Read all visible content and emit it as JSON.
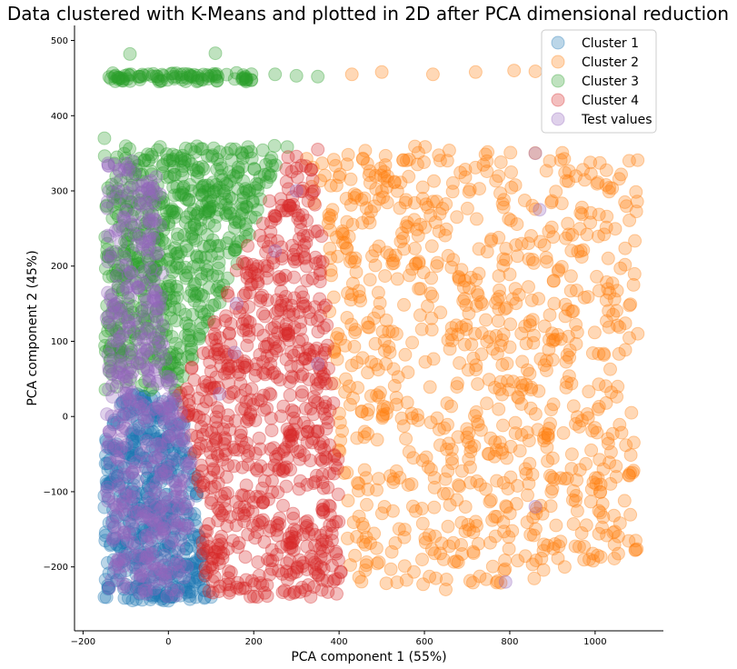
{
  "chart_data": {
    "type": "scatter",
    "title": "Data clustered with K-Means and plotted in 2D after PCA dimensional reduction",
    "xlabel": "PCA component 1 (55%)",
    "ylabel": "PCA component 2 (45%)",
    "xlim": [
      -220,
      1160
    ],
    "ylim": [
      -285,
      520
    ],
    "xticks": [
      -200,
      0,
      200,
      400,
      600,
      800,
      1000
    ],
    "yticks": [
      -200,
      -100,
      0,
      100,
      200,
      300,
      400,
      500
    ],
    "grid": false,
    "legend_position": "top-right",
    "marker_alpha": 0.3,
    "series": [
      {
        "name": "Cluster 1",
        "color": "#1f77b4",
        "regions": [
          {
            "polygon": [
              [
                -150,
                30
              ],
              [
                -150,
                -245
              ],
              [
                90,
                -245
              ],
              [
                60,
                -60
              ],
              [
                20,
                30
              ]
            ],
            "count": 520
          }
        ],
        "points": [
          [
            -150,
            -240
          ],
          [
            0,
            -245
          ],
          [
            100,
            -240
          ],
          [
            40,
            -230
          ]
        ]
      },
      {
        "name": "Cluster 2",
        "color": "#ff7f0e",
        "regions": [
          {
            "polygon": [
              [
                310,
                350
              ],
              [
                600,
                360
              ],
              [
                800,
                355
              ],
              [
                1100,
                345
              ],
              [
                1100,
                -180
              ],
              [
                900,
                -220
              ],
              [
                420,
                -225
              ],
              [
                370,
                200
              ]
            ],
            "count": 900
          }
        ],
        "points": [
          [
            430,
            455
          ],
          [
            500,
            458
          ],
          [
            620,
            455
          ],
          [
            720,
            458
          ],
          [
            810,
            460
          ],
          [
            860,
            459
          ],
          [
            1070,
            285
          ],
          [
            1090,
            175
          ],
          [
            1080,
            340
          ],
          [
            1100,
            110
          ],
          [
            1085,
            5
          ],
          [
            1095,
            -165
          ],
          [
            880,
            -170
          ],
          [
            650,
            -230
          ]
        ]
      },
      {
        "name": "Cluster 3",
        "color": "#2ca02c",
        "regions": [
          {
            "polygon": [
              [
                -150,
                360
              ],
              [
                280,
                360
              ],
              [
                200,
                250
              ],
              [
                80,
                100
              ],
              [
                20,
                30
              ],
              [
                -150,
                30
              ]
            ],
            "count": 650
          },
          {
            "polygon": [
              [
                -140,
                457
              ],
              [
                200,
                457
              ],
              [
                200,
                445
              ],
              [
                -140,
                445
              ]
            ],
            "count": 90
          }
        ],
        "points": [
          [
            -90,
            482
          ],
          [
            110,
            483
          ],
          [
            250,
            455
          ],
          [
            300,
            453
          ],
          [
            350,
            452
          ],
          [
            -150,
            370
          ]
        ]
      },
      {
        "name": "Cluster 4",
        "color": "#d62728",
        "regions": [
          {
            "polygon": [
              [
                20,
                30
              ],
              [
                80,
                100
              ],
              [
                200,
                250
              ],
              [
                280,
                350
              ],
              [
                330,
                350
              ],
              [
                370,
                200
              ],
              [
                420,
                -240
              ],
              [
                90,
                -240
              ],
              [
                60,
                -60
              ]
            ],
            "count": 750
          }
        ],
        "points": [
          [
            350,
            355
          ],
          [
            300,
            330
          ],
          [
            100,
            60
          ]
        ]
      },
      {
        "name": "Test values",
        "color": "#9467bd",
        "regions": [
          {
            "polygon": [
              [
                -145,
                340
              ],
              [
                -20,
                340
              ],
              [
                -10,
                100
              ],
              [
                60,
                -60
              ],
              [
                40,
                -240
              ],
              [
                -145,
                -240
              ]
            ],
            "count": 500
          }
        ],
        "points": [
          [
            160,
            150
          ],
          [
            155,
            85
          ],
          [
            120,
            30
          ],
          [
            250,
            220
          ],
          [
            860,
            350
          ],
          [
            870,
            275
          ],
          [
            860,
            -120
          ],
          [
            790,
            -220
          ],
          [
            300,
            300
          ],
          [
            350,
            70
          ]
        ]
      }
    ]
  }
}
